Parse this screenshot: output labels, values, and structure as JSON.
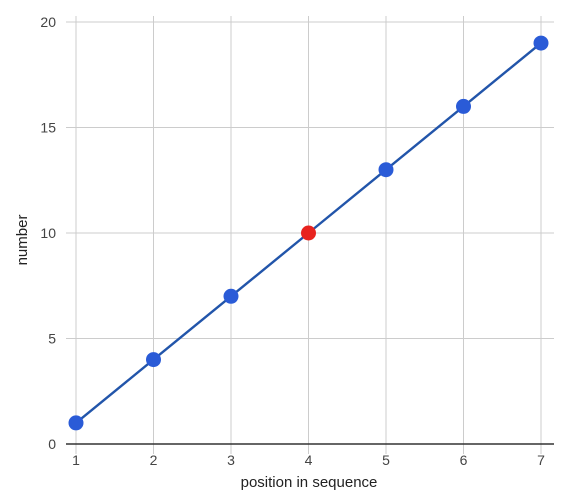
{
  "chart_data": {
    "type": "line",
    "title": "",
    "xlabel": "position in sequence",
    "ylabel": "number",
    "x": [
      1,
      2,
      3,
      4,
      5,
      6,
      7
    ],
    "series": [
      {
        "values": [
          1,
          4,
          7,
          10,
          13,
          16,
          19
        ]
      }
    ],
    "highlighted_point": {
      "x": 4,
      "y": 10
    },
    "xlim": [
      1,
      7
    ],
    "ylim": [
      0,
      20
    ],
    "x_ticks": [
      1,
      2,
      3,
      4,
      5,
      6,
      7
    ],
    "y_ticks": [
      0,
      5,
      10,
      15,
      20
    ],
    "grid": true,
    "legend": "none",
    "colors": {
      "line": "#2255aa",
      "point": "#2a5bd7",
      "highlight": "#e8231f",
      "grid": "#cccccc",
      "axis": "#333333"
    }
  }
}
